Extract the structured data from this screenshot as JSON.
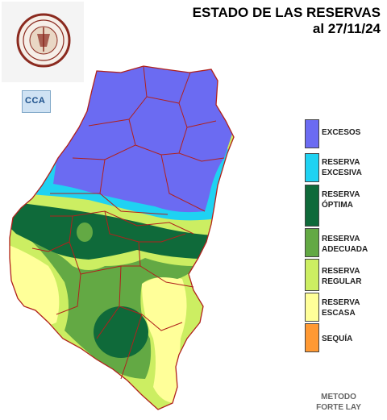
{
  "header": {
    "title_line1": "ESTADO DE LAS RESERVAS",
    "title_line2": "al 27/11/24"
  },
  "logos": {
    "bolsa_text": "BOLSA DE CEREALES DE ENTRE RIOS",
    "bolsa_year": "1979",
    "cca_text": "CCA"
  },
  "legend": [
    {
      "label": "EXCESOS",
      "color": "#6b6bf2"
    },
    {
      "label": "RESERVA\nEXCESIVA",
      "color": "#1fd2f2"
    },
    {
      "label": "RESERVA\nÓPTIMA",
      "color": "#0f6a3a"
    },
    {
      "label": "RESERVA\nADECUADA",
      "color": "#63a944"
    },
    {
      "label": "RESERVA\nREGULAR",
      "color": "#ccee62"
    },
    {
      "label": "RESERVA\nESCASA",
      "color": "#ffff99"
    },
    {
      "label": "SEQUÍA",
      "color": "#ff9933"
    }
  ],
  "footer": {
    "method_line1": "METODO",
    "method_line2": "FORTE LAY"
  }
}
